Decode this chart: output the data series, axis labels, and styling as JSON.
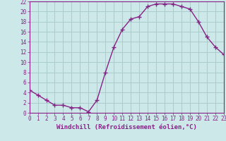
{
  "x": [
    0,
    1,
    2,
    3,
    4,
    5,
    6,
    7,
    8,
    9,
    10,
    11,
    12,
    13,
    14,
    15,
    16,
    17,
    18,
    19,
    20,
    21,
    22,
    23
  ],
  "y": [
    4.5,
    3.5,
    2.5,
    1.5,
    1.5,
    1.0,
    1.0,
    0.2,
    2.5,
    8.0,
    13.0,
    16.5,
    18.5,
    19.0,
    21.0,
    21.5,
    21.5,
    21.5,
    21.0,
    20.5,
    18.0,
    15.0,
    13.0,
    11.5
  ],
  "line_color": "#882288",
  "marker": "+",
  "marker_size": 4,
  "marker_lw": 1.0,
  "bg_color": "#cce8e8",
  "grid_color": "#aacccc",
  "xlabel": "Windchill (Refroidissement éolien,°C)",
  "xlim": [
    0,
    23
  ],
  "ylim": [
    0,
    22
  ],
  "yticks": [
    0,
    2,
    4,
    6,
    8,
    10,
    12,
    14,
    16,
    18,
    20,
    22
  ],
  "xticks": [
    0,
    1,
    2,
    3,
    4,
    5,
    6,
    7,
    8,
    9,
    10,
    11,
    12,
    13,
    14,
    15,
    16,
    17,
    18,
    19,
    20,
    21,
    22,
    23
  ],
  "spine_color": "#882288",
  "label_color": "#882288",
  "tick_color": "#882288",
  "xlabel_fontsize": 6.5,
  "tick_fontsize": 5.5,
  "linewidth": 1.0
}
